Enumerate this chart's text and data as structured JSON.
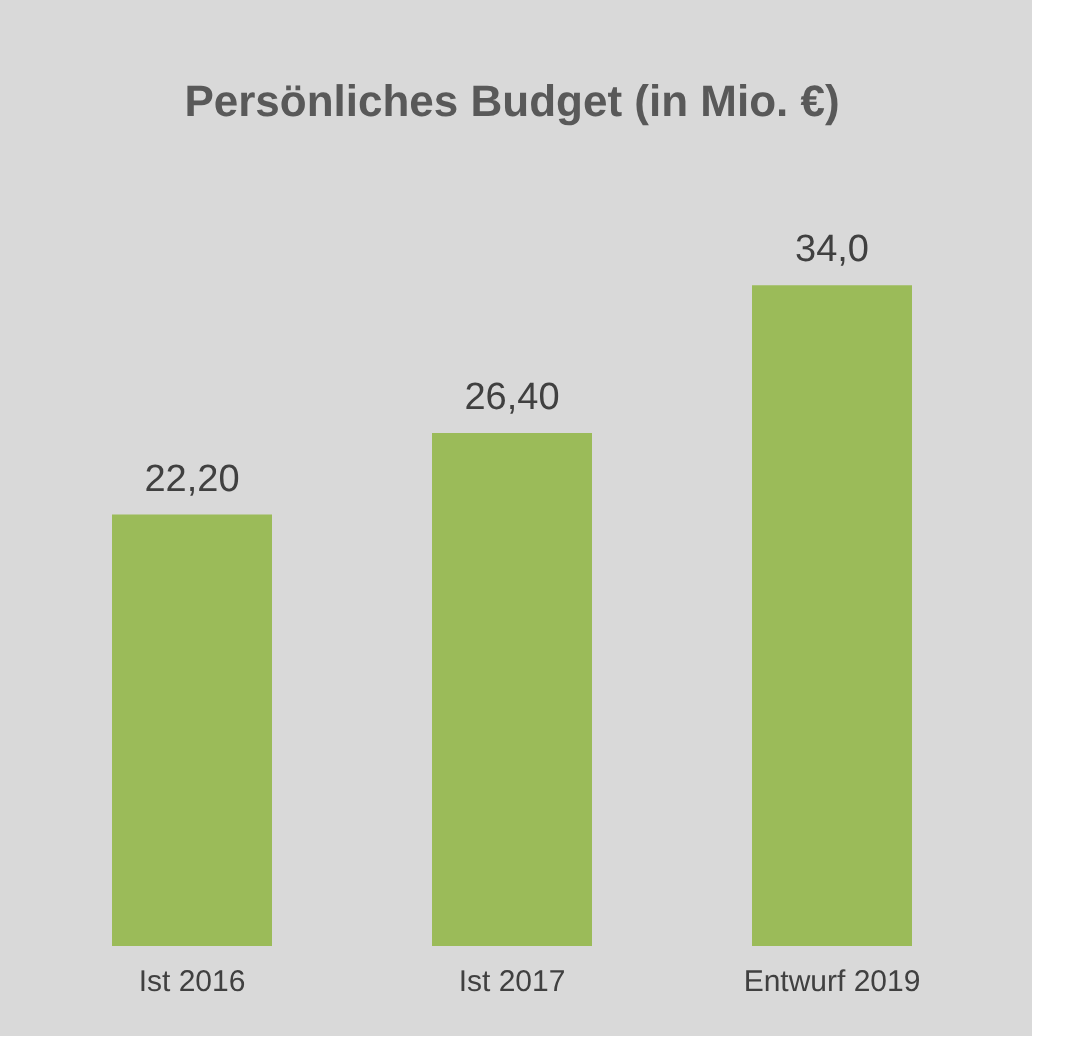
{
  "chart_data": {
    "type": "bar",
    "title": "Persönliches Budget (in Mio. €)",
    "categories": [
      "Ist 2016",
      "Ist 2017",
      "Entwurf 2019"
    ],
    "values": [
      22.2,
      26.4,
      34.0
    ],
    "value_labels": [
      "22,20",
      "26,40",
      "34,0"
    ],
    "color": "#9bbb59"
  }
}
